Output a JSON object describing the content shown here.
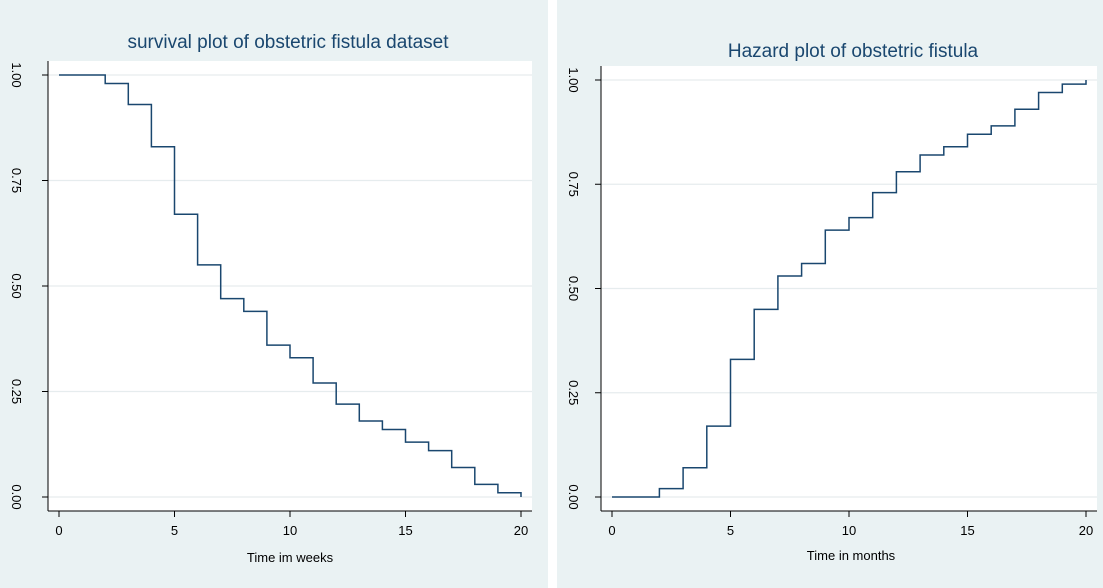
{
  "chart_data": [
    {
      "type": "line",
      "title": "survival  plot of obstetric fistula dataset",
      "xlabel": "Time im weeks",
      "ylabel": "",
      "xlim": [
        0,
        20
      ],
      "ylim": [
        0,
        1
      ],
      "x_ticks": [
        "0",
        "5",
        "10",
        "15",
        "20"
      ],
      "y_ticks": [
        "0.00",
        "0.25",
        "0.50",
        "0.75",
        "1.00"
      ],
      "grid": true,
      "step": true,
      "line_color": "#1a476f",
      "series": [
        {
          "x": [
            0,
            2,
            3,
            4,
            5,
            6,
            7,
            8,
            9,
            10,
            11,
            12,
            13,
            14,
            15,
            16,
            17,
            18,
            19,
            20
          ],
          "y": [
            1.0,
            0.98,
            0.93,
            0.83,
            0.67,
            0.55,
            0.47,
            0.44,
            0.36,
            0.33,
            0.27,
            0.22,
            0.18,
            0.16,
            0.13,
            0.11,
            0.07,
            0.03,
            0.01,
            0.0
          ]
        }
      ]
    },
    {
      "type": "line",
      "title": "Hazard plot of obstetric fistula",
      "xlabel": "Time in months",
      "ylabel": "",
      "xlim": [
        0,
        20
      ],
      "ylim": [
        0,
        1
      ],
      "x_ticks": [
        "0",
        "5",
        "10",
        "15",
        "20"
      ],
      "y_ticks": [
        "0.00",
        "0.25",
        "0.50",
        "0.75",
        "1.00"
      ],
      "grid": true,
      "step": true,
      "line_color": "#1a476f",
      "series": [
        {
          "x": [
            0,
            2,
            3,
            4,
            5,
            6,
            7,
            8,
            9,
            10,
            11,
            12,
            13,
            14,
            15,
            16,
            17,
            18,
            19,
            20
          ],
          "y": [
            0.0,
            0.02,
            0.07,
            0.17,
            0.33,
            0.45,
            0.53,
            0.56,
            0.64,
            0.67,
            0.73,
            0.78,
            0.82,
            0.84,
            0.87,
            0.89,
            0.93,
            0.97,
            0.99,
            1.0
          ]
        }
      ]
    }
  ]
}
